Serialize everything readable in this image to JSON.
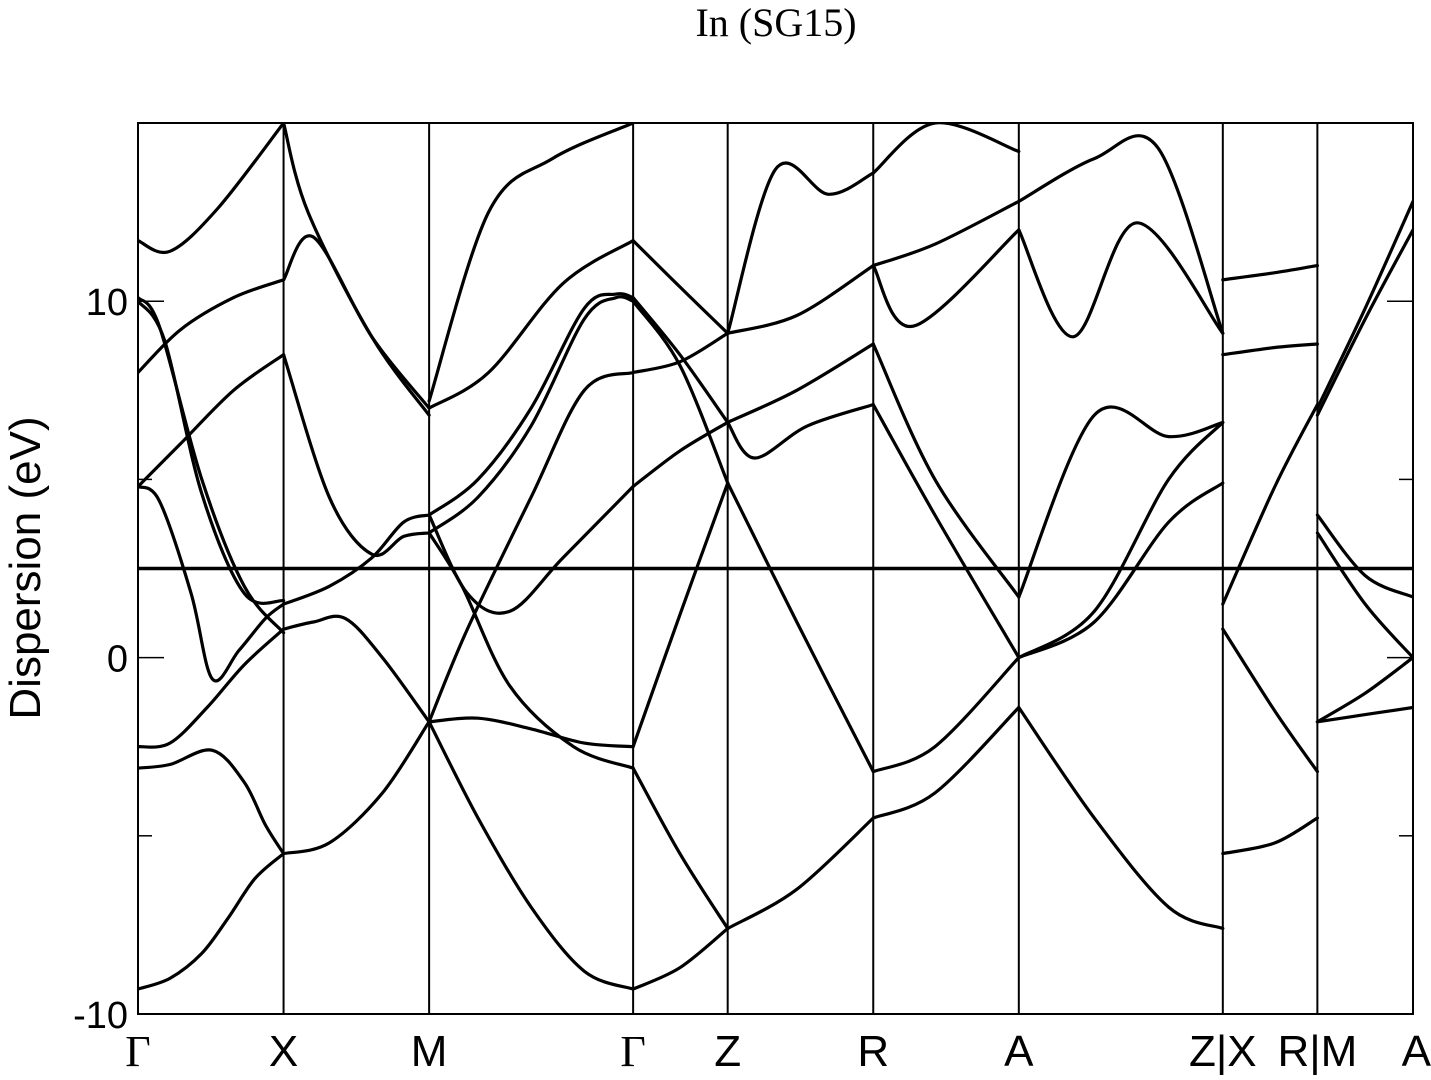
{
  "chart_data": {
    "type": "line",
    "title": "In (SG15)",
    "xlabel": "",
    "ylabel": "Dispersion (eV)",
    "ylim": [
      -10,
      15
    ],
    "yticks": [
      -10,
      0,
      10
    ],
    "ytick_labels": [
      "-10",
      "0",
      "10"
    ],
    "fermi_level": 2.5,
    "x_range": [
      0,
      12.0
    ],
    "kpoints": [
      {
        "label": "Γ",
        "x": 0.0,
        "serif": true
      },
      {
        "label": "X",
        "x": 1.37
      },
      {
        "label": "M",
        "x": 2.74
      },
      {
        "label": "Γ",
        "x": 4.66,
        "serif": true
      },
      {
        "label": "Z",
        "x": 5.55
      },
      {
        "label": "R",
        "x": 6.92
      },
      {
        "label": "A",
        "x": 8.29
      },
      {
        "label": "Z|X",
        "x": 10.21
      },
      {
        "label": "R|M",
        "x": 11.1
      },
      {
        "label": "A",
        "x": 12.0
      }
    ],
    "series": [
      {
        "name": "G-X band 1",
        "x": [
          0.0,
          0.3,
          0.6,
          0.85,
          1.1,
          1.37
        ],
        "y": [
          -9.3,
          -9.0,
          -8.3,
          -7.3,
          -6.2,
          -5.5
        ]
      },
      {
        "name": "G-X band 2",
        "x": [
          0.0,
          0.3,
          0.7,
          1.0,
          1.2,
          1.37
        ],
        "y": [
          -3.1,
          -3.0,
          -2.6,
          -3.5,
          -4.7,
          -5.5
        ]
      },
      {
        "name": "G-X band 3",
        "x": [
          0.0,
          0.3,
          0.65,
          1.0,
          1.37
        ],
        "y": [
          -2.5,
          -2.4,
          -1.4,
          -0.2,
          0.8
        ]
      },
      {
        "name": "G-X band 4",
        "x": [
          0.0,
          0.2,
          0.5,
          0.7,
          0.95,
          1.2,
          1.37
        ],
        "y": [
          4.8,
          4.4,
          1.8,
          -0.6,
          0.2,
          1.1,
          1.5
        ]
      },
      {
        "name": "G-X band 5",
        "x": [
          0.0,
          0.2,
          0.6,
          1.0,
          1.37
        ],
        "y": [
          10.1,
          9.3,
          5.0,
          2.0,
          0.7
        ]
      },
      {
        "name": "G-X band 6",
        "x": [
          0.0,
          0.25,
          0.6,
          1.0,
          1.37
        ],
        "y": [
          10.0,
          8.9,
          4.6,
          1.8,
          1.6
        ]
      },
      {
        "name": "G-X band 7",
        "x": [
          0.0,
          0.4,
          0.9,
          1.37
        ],
        "y": [
          4.8,
          6.0,
          7.5,
          8.5
        ]
      },
      {
        "name": "G-X band 8",
        "x": [
          0.0,
          0.4,
          0.9,
          1.37
        ],
        "y": [
          8.0,
          9.2,
          10.1,
          10.6
        ]
      },
      {
        "name": "G-X band 9",
        "x": [
          0.0,
          0.3,
          0.75,
          1.37
        ],
        "y": [
          11.7,
          11.4,
          12.6,
          15.0
        ]
      },
      {
        "name": "X-M band 1",
        "x": [
          1.37,
          1.8,
          2.3,
          2.74
        ],
        "y": [
          -5.5,
          -5.2,
          -3.8,
          -1.8
        ]
      },
      {
        "name": "X-M band 2",
        "x": [
          1.37,
          1.65,
          1.95,
          2.3,
          2.74
        ],
        "y": [
          0.8,
          1.0,
          1.1,
          0.0,
          -1.8
        ]
      },
      {
        "name": "X-M band 3",
        "x": [
          1.37,
          1.8,
          2.2,
          2.5,
          2.74
        ],
        "y": [
          1.5,
          2.0,
          2.8,
          3.8,
          4.0
        ]
      },
      {
        "name": "X-M band 4",
        "x": [
          1.37,
          1.8,
          2.2,
          2.5,
          2.74
        ],
        "y": [
          8.5,
          4.5,
          2.9,
          3.4,
          3.5
        ]
      },
      {
        "name": "X-M band 5",
        "x": [
          1.37,
          1.65,
          2.2,
          2.74
        ],
        "y": [
          10.6,
          11.8,
          9.0,
          7.0
        ]
      },
      {
        "name": "X-M band 6",
        "x": [
          1.37,
          1.6,
          2.2,
          2.74
        ],
        "y": [
          15.0,
          12.5,
          9.0,
          6.8
        ]
      },
      {
        "name": "M-G band 1",
        "x": [
          2.74,
          3.2,
          3.7,
          4.2,
          4.66
        ],
        "y": [
          -1.8,
          -4.5,
          -7.0,
          -8.8,
          -9.3
        ]
      },
      {
        "name": "M-G band 2",
        "x": [
          2.74,
          3.2,
          3.7,
          4.2,
          4.66
        ],
        "y": [
          -1.8,
          -1.7,
          -2.0,
          -2.4,
          -2.5
        ]
      },
      {
        "name": "M-G band 3",
        "x": [
          2.74,
          3.1,
          3.7,
          4.2,
          4.66
        ],
        "y": [
          -1.8,
          0.8,
          4.5,
          7.5,
          8.0
        ]
      },
      {
        "name": "M-G band 4",
        "x": [
          2.74,
          3.05,
          3.5,
          4.1,
          4.66
        ],
        "y": [
          3.5,
          2.0,
          -0.8,
          -2.5,
          -3.1
        ]
      },
      {
        "name": "M-G band 5",
        "x": [
          2.74,
          3.1,
          3.5,
          4.0,
          4.66
        ],
        "y": [
          4.0,
          1.8,
          1.3,
          2.8,
          4.8
        ]
      },
      {
        "name": "M-G band 6",
        "x": [
          2.74,
          3.2,
          3.7,
          4.2,
          4.5,
          4.66
        ],
        "y": [
          3.5,
          4.5,
          6.5,
          9.5,
          10.1,
          10.0
        ]
      },
      {
        "name": "M-G band 7",
        "x": [
          2.74,
          3.2,
          3.7,
          4.2,
          4.5,
          4.66
        ],
        "y": [
          4.0,
          5.0,
          7.0,
          9.8,
          10.2,
          10.1
        ]
      },
      {
        "name": "M-G band 8",
        "x": [
          2.74,
          3.3,
          4.0,
          4.66
        ],
        "y": [
          7.0,
          8.0,
          10.5,
          11.7
        ]
      },
      {
        "name": "M-G band 9",
        "x": [
          2.74,
          3.3,
          3.9,
          4.66
        ],
        "y": [
          7.2,
          12.5,
          14.0,
          15.0
        ]
      },
      {
        "name": "Γ-Z band 1",
        "x": [
          4.66,
          5.1,
          5.55
        ],
        "y": [
          -9.3,
          -8.7,
          -7.6
        ]
      },
      {
        "name": "Γ-Z band 2",
        "x": [
          4.66,
          5.1,
          5.55
        ],
        "y": [
          -3.1,
          -5.5,
          -7.6
        ]
      },
      {
        "name": "Γ-Z band 3",
        "x": [
          4.66,
          5.1,
          5.55
        ],
        "y": [
          -2.5,
          1.2,
          4.9
        ]
      },
      {
        "name": "Γ-Z band 4",
        "x": [
          4.66,
          5.1,
          5.55
        ],
        "y": [
          4.8,
          5.8,
          6.6
        ]
      },
      {
        "name": "Γ-Z band 5",
        "x": [
          4.66,
          5.1,
          5.55
        ],
        "y": [
          8.0,
          8.3,
          9.1
        ]
      },
      {
        "name": "Γ-Z band 6",
        "x": [
          4.66,
          5.1,
          5.55
        ],
        "y": [
          10.0,
          8.2,
          4.9
        ]
      },
      {
        "name": "Γ-Z band 7",
        "x": [
          4.66,
          5.1,
          5.55
        ],
        "y": [
          10.1,
          8.5,
          6.6
        ]
      },
      {
        "name": "Γ-Z band 8",
        "x": [
          4.66,
          5.1,
          5.55
        ],
        "y": [
          11.7,
          10.4,
          9.1
        ]
      },
      {
        "name": "Z-R band 1",
        "x": [
          5.55,
          6.2,
          6.92
        ],
        "y": [
          -7.6,
          -6.5,
          -4.5
        ]
      },
      {
        "name": "Z-R band 2",
        "x": [
          5.55,
          6.2,
          6.92
        ],
        "y": [
          4.9,
          1.0,
          -3.2
        ]
      },
      {
        "name": "Z-R band 3",
        "x": [
          5.55,
          5.8,
          6.3,
          6.92
        ],
        "y": [
          6.6,
          5.6,
          6.5,
          7.1
        ]
      },
      {
        "name": "Z-R band 4",
        "x": [
          5.55,
          6.2,
          6.92
        ],
        "y": [
          6.6,
          7.5,
          8.8
        ]
      },
      {
        "name": "Z-R band 5",
        "x": [
          5.55,
          6.2,
          6.92
        ],
        "y": [
          9.1,
          9.6,
          11.0
        ]
      },
      {
        "name": "Z-R band 6",
        "x": [
          5.55,
          6.0,
          6.5,
          6.92
        ],
        "y": [
          9.1,
          13.7,
          13.0,
          13.6
        ]
      },
      {
        "name": "R-A band 1",
        "x": [
          6.92,
          7.5,
          8.29
        ],
        "y": [
          -4.5,
          -3.8,
          -1.4
        ]
      },
      {
        "name": "R-A band 2",
        "x": [
          6.92,
          7.5,
          8.29
        ],
        "y": [
          -3.2,
          -2.5,
          0.0
        ]
      },
      {
        "name": "R-A band 3",
        "x": [
          6.92,
          7.5,
          8.29
        ],
        "y": [
          7.1,
          4.0,
          0.0
        ]
      },
      {
        "name": "R-A band 4",
        "x": [
          6.92,
          7.5,
          8.29
        ],
        "y": [
          8.8,
          5.0,
          1.7
        ]
      },
      {
        "name": "R-A band 5",
        "x": [
          6.92,
          7.3,
          8.29
        ],
        "y": [
          11.0,
          9.3,
          12.0
        ]
      },
      {
        "name": "R-A band 6",
        "x": [
          6.92,
          7.5,
          8.29
        ],
        "y": [
          11.0,
          11.6,
          12.8
        ]
      },
      {
        "name": "R-A band 7",
        "x": [
          6.92,
          7.5,
          8.29
        ],
        "y": [
          13.6,
          15.0,
          14.2
        ]
      },
      {
        "name": "A-Z band 1",
        "x": [
          8.29,
          9.0,
          9.7,
          10.21
        ],
        "y": [
          -1.4,
          -4.5,
          -7.0,
          -7.6
        ]
      },
      {
        "name": "A-Z band 2",
        "x": [
          8.29,
          9.0,
          9.7,
          10.21
        ],
        "y": [
          0.0,
          1.0,
          3.8,
          4.9
        ]
      },
      {
        "name": "A-Z band 3",
        "x": [
          8.29,
          9.0,
          9.7,
          10.21
        ],
        "y": [
          0.0,
          1.3,
          5.0,
          6.6
        ]
      },
      {
        "name": "A-Z band 4",
        "x": [
          8.29,
          9.0,
          9.7,
          10.21
        ],
        "y": [
          1.7,
          6.8,
          6.2,
          6.6
        ]
      },
      {
        "name": "A-Z band 5",
        "x": [
          8.29,
          8.8,
          9.4,
          10.21
        ],
        "y": [
          12.0,
          9.0,
          12.2,
          9.1
        ]
      },
      {
        "name": "A-Z band 6",
        "x": [
          8.29,
          9.0,
          9.6,
          10.21
        ],
        "y": [
          12.8,
          14.0,
          14.3,
          9.1
        ]
      },
      {
        "name": "X-R band 1",
        "x": [
          10.21,
          10.7,
          11.1
        ],
        "y": [
          -5.5,
          -5.2,
          -4.5
        ]
      },
      {
        "name": "X-R band 2",
        "x": [
          10.21,
          10.7,
          11.1
        ],
        "y": [
          0.8,
          -1.5,
          -3.2
        ]
      },
      {
        "name": "X-R band 3",
        "x": [
          10.21,
          10.7,
          11.1
        ],
        "y": [
          1.5,
          4.8,
          7.1
        ]
      },
      {
        "name": "X-R band 4",
        "x": [
          10.21,
          10.7,
          11.1
        ],
        "y": [
          8.5,
          8.7,
          8.8
        ]
      },
      {
        "name": "X-R band 5",
        "x": [
          10.21,
          10.7,
          11.1
        ],
        "y": [
          10.6,
          10.8,
          11.0
        ]
      },
      {
        "name": "M-A band 1",
        "x": [
          11.1,
          11.55,
          12.0
        ],
        "y": [
          -1.8,
          -1.6,
          -1.4
        ]
      },
      {
        "name": "M-A band 2",
        "x": [
          11.1,
          11.55,
          12.0
        ],
        "y": [
          -1.8,
          -1.0,
          0.0
        ]
      },
      {
        "name": "M-A band 3",
        "x": [
          11.1,
          11.55,
          12.0
        ],
        "y": [
          3.5,
          1.5,
          0.0
        ]
      },
      {
        "name": "M-A band 4",
        "x": [
          11.1,
          11.55,
          12.0
        ],
        "y": [
          4.0,
          2.3,
          1.7
        ]
      },
      {
        "name": "M-A band 5",
        "x": [
          11.1,
          11.55,
          12.0
        ],
        "y": [
          6.8,
          9.5,
          12.0
        ]
      },
      {
        "name": "M-A band 6",
        "x": [
          11.1,
          11.55,
          12.0
        ],
        "y": [
          7.0,
          9.8,
          12.8
        ]
      }
    ]
  }
}
